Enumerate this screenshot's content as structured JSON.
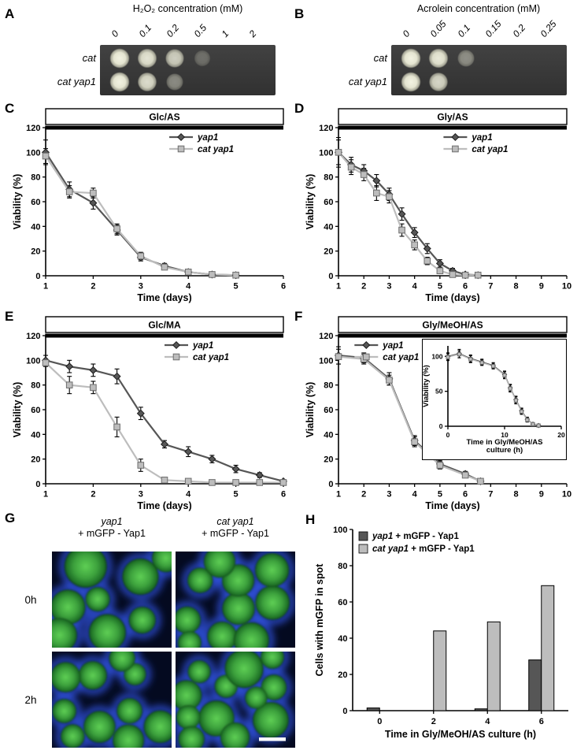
{
  "panels": {
    "a": {
      "label": "A",
      "title": "H₂O₂ concentration (mM)",
      "concentrations": [
        "0",
        "0.1",
        "0.2",
        "0.5",
        "1",
        "2"
      ],
      "rows": [
        {
          "label": "cat",
          "spots": [
            1,
            0.92,
            0.8,
            0.28,
            0,
            0
          ]
        },
        {
          "label": "cat yap1",
          "spots": [
            1,
            0.88,
            0.45,
            0,
            0,
            0
          ]
        }
      ]
    },
    "b": {
      "label": "B",
      "title": "Acrolein concentration (mM)",
      "concentrations": [
        "0",
        "0.05",
        "0.1",
        "0.15",
        "0.2",
        "0.25"
      ],
      "rows": [
        {
          "label": "cat",
          "spots": [
            1,
            0.95,
            0.45,
            0,
            0,
            0
          ]
        },
        {
          "label": "cat yap1",
          "spots": [
            1,
            0.85,
            0,
            0,
            0,
            0
          ]
        }
      ]
    },
    "c": {
      "label": "C"
    },
    "d": {
      "label": "D"
    },
    "e": {
      "label": "E"
    },
    "f": {
      "label": "F"
    },
    "g": {
      "label": "G",
      "columns": [
        {
          "genotype": "yap1",
          "construct": "+ mGFP - Yap1"
        },
        {
          "genotype": "cat yap1",
          "construct": "+ mGFP - Yap1"
        }
      ],
      "row_labels": [
        "0h",
        "2h"
      ]
    },
    "h": {
      "label": "H"
    }
  },
  "chart_data": {
    "c": {
      "type": "line",
      "title": "Glc/AS",
      "xlabel": "Time (days)",
      "ylabel": "Viability (%)",
      "xlim": [
        1,
        6
      ],
      "ylim": [
        0,
        120
      ],
      "xticks": [
        1,
        2,
        3,
        4,
        5,
        6
      ],
      "yticks": [
        0,
        20,
        40,
        60,
        80,
        100,
        120
      ],
      "x": [
        1,
        1.5,
        2,
        2.5,
        3,
        3.5,
        4,
        4.5,
        5
      ],
      "series": [
        {
          "name": "yap1",
          "marker": "diamond",
          "color": "#565656",
          "stroke": "#1c1c1c",
          "values": [
            100,
            70,
            59,
            37,
            15,
            8,
            3,
            1,
            0.5
          ],
          "err": [
            10,
            6,
            5,
            4,
            3,
            2,
            1,
            1,
            1
          ]
        },
        {
          "name": "cat yap1",
          "marker": "square",
          "color": "#bdbdbd",
          "stroke": "#6e6e6e",
          "values": [
            97,
            68,
            67,
            38,
            16,
            7,
            3,
            1,
            0.5
          ],
          "err": [
            6,
            5,
            4,
            4,
            3,
            2,
            1,
            1,
            1
          ]
        }
      ],
      "legend": {
        "x_frac": 0.52
      }
    },
    "d": {
      "type": "line",
      "title": "Gly/AS",
      "xlabel": "Time (days)",
      "ylabel": "Viability (%)",
      "xlim": [
        1,
        10
      ],
      "ylim": [
        0,
        120
      ],
      "xticks": [
        1,
        2,
        3,
        4,
        5,
        6,
        7,
        8,
        9,
        10
      ],
      "yticks": [
        0,
        20,
        40,
        60,
        80,
        100,
        120
      ],
      "x": [
        1,
        1.5,
        2,
        2.5,
        3,
        3.5,
        4,
        4.5,
        5,
        5.5,
        6,
        6.5
      ],
      "series": [
        {
          "name": "yap1",
          "marker": "diamond",
          "color": "#565656",
          "stroke": "#1c1c1c",
          "values": [
            100,
            90,
            85,
            77,
            66,
            50,
            35,
            22,
            10,
            4,
            1,
            0.5
          ],
          "err": [
            10,
            6,
            5,
            5,
            5,
            5,
            4,
            4,
            3,
            2,
            1,
            1
          ]
        },
        {
          "name": "cat yap1",
          "marker": "square",
          "color": "#bdbdbd",
          "stroke": "#6e6e6e",
          "values": [
            100,
            88,
            82,
            67,
            64,
            37,
            25,
            12,
            4,
            1,
            0.5,
            0.5
          ],
          "err": [
            12,
            6,
            5,
            6,
            5,
            5,
            4,
            3,
            2,
            1,
            1,
            1
          ]
        }
      ],
      "legend": {
        "x_frac": 0.46
      }
    },
    "e": {
      "type": "line",
      "title": "Glc/MA",
      "xlabel": "Time (days)",
      "ylabel": "Viability (%)",
      "xlim": [
        1,
        6
      ],
      "ylim": [
        0,
        120
      ],
      "xticks": [
        1,
        2,
        3,
        4,
        5,
        6
      ],
      "yticks": [
        0,
        20,
        40,
        60,
        80,
        100,
        120
      ],
      "x": [
        1,
        1.5,
        2,
        2.5,
        3,
        3.5,
        4,
        4.5,
        5,
        5.5,
        6
      ],
      "series": [
        {
          "name": "yap1",
          "marker": "diamond",
          "color": "#565656",
          "stroke": "#1c1c1c",
          "values": [
            100,
            95,
            92,
            87,
            57,
            32,
            26,
            20,
            12,
            7,
            2
          ],
          "err": [
            4,
            5,
            5,
            6,
            5,
            3,
            4,
            3,
            3,
            2,
            1
          ]
        },
        {
          "name": "cat yap1",
          "marker": "square",
          "color": "#bdbdbd",
          "stroke": "#6e6e6e",
          "values": [
            98,
            80,
            78,
            46,
            15,
            3,
            2,
            1,
            1,
            1,
            1
          ],
          "err": [
            3,
            7,
            5,
            8,
            5,
            2,
            1,
            1,
            1,
            1,
            1
          ]
        }
      ],
      "legend": {
        "x_frac": 0.5
      }
    },
    "f": {
      "type": "line",
      "title": "Gly/MeOH/AS",
      "xlabel": "Time (days)",
      "ylabel": "Viability (%)",
      "xlim": [
        1,
        10
      ],
      "ylim": [
        0,
        120
      ],
      "xticks": [
        1,
        2,
        3,
        4,
        5,
        6,
        7,
        8,
        9,
        10
      ],
      "yticks": [
        0,
        20,
        40,
        60,
        80,
        100,
        120
      ],
      "x": [
        1,
        2,
        3,
        4,
        5,
        6,
        6.6
      ],
      "series": [
        {
          "name": "yap1",
          "marker": "diamond",
          "color": "#565656",
          "stroke": "#1c1c1c",
          "values": [
            104,
            102,
            85,
            35,
            16,
            8,
            2
          ],
          "err": [
            7,
            4,
            5,
            4,
            3,
            2,
            1
          ]
        },
        {
          "name": "cat yap1",
          "marker": "square",
          "color": "#bdbdbd",
          "stroke": "#6e6e6e",
          "values": [
            103,
            101,
            84,
            34,
            15,
            7,
            2
          ],
          "err": [
            6,
            4,
            4,
            4,
            3,
            2,
            1
          ]
        }
      ],
      "legend": {
        "x_frac": 0.07
      }
    },
    "f_inset": {
      "type": "line",
      "ylabel": "Viability (%)",
      "xlabel_lines": [
        "Time in Gly/MeOH/AS",
        "culture (h)"
      ],
      "xlim": [
        0,
        20
      ],
      "ylim": [
        0,
        115
      ],
      "xticks": [
        0,
        10,
        20
      ],
      "yticks": [
        0,
        50,
        100
      ],
      "x": [
        0,
        2,
        4,
        6,
        8,
        10,
        11,
        12,
        13,
        14,
        15,
        16
      ],
      "series": [
        {
          "name": "yap1",
          "marker": "diamond",
          "color": "#565656",
          "stroke": "#1c1c1c",
          "values": [
            100,
            104,
            97,
            92,
            87,
            74,
            55,
            38,
            22,
            10,
            3,
            1
          ],
          "err": [
            5,
            6,
            5,
            4,
            4,
            5,
            5,
            5,
            4,
            3,
            2,
            1
          ]
        },
        {
          "name": "cat yap1",
          "marker": "square",
          "color": "#bdbdbd",
          "stroke": "#6e6e6e",
          "values": [
            99,
            103,
            96,
            91,
            86,
            73,
            54,
            37,
            21,
            9,
            3,
            1
          ],
          "err": [
            5,
            5,
            5,
            4,
            4,
            5,
            5,
            5,
            4,
            3,
            2,
            1
          ]
        }
      ]
    },
    "h": {
      "type": "bar",
      "ylabel": "Cells with mGFP in spot",
      "xlabel": "Time in Gly/MeOH/AS culture (h)",
      "categories": [
        "0",
        "2",
        "4",
        "6"
      ],
      "ylim": [
        0,
        100
      ],
      "yticks": [
        0,
        20,
        40,
        60,
        80,
        100
      ],
      "series": [
        {
          "name_parts": [
            {
              "t": "yap1",
              "i": true
            },
            {
              "t": " + mGFP - Yap1",
              "i": false
            }
          ],
          "color": "#565656",
          "values": [
            1.5,
            0,
            1,
            28
          ]
        },
        {
          "name_parts": [
            {
              "t": "cat yap1",
              "i": true
            },
            {
              "t": " + mGFP - Yap1",
              "i": false
            }
          ],
          "color": "#bdbdbd",
          "values": [
            0,
            44,
            49,
            69
          ]
        }
      ]
    }
  }
}
